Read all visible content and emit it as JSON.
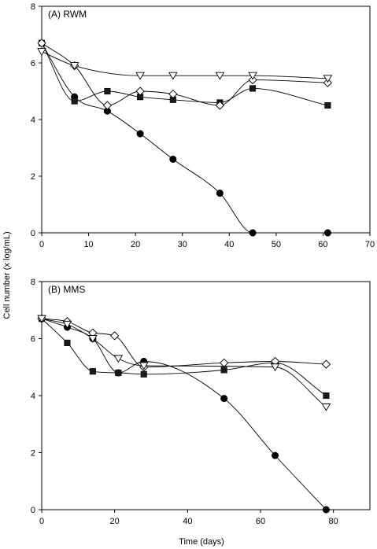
{
  "figure": {
    "ylabel": "Cell number (x log/mL)",
    "xlabel": "Time (days)"
  },
  "chart_data": [
    {
      "type": "line",
      "title": "(A) RWM",
      "xlim": [
        0,
        70
      ],
      "ylim": [
        0,
        8
      ],
      "xticks": [
        0,
        10,
        20,
        30,
        40,
        50,
        60,
        70
      ],
      "yticks": [
        0,
        2,
        4,
        6,
        8
      ],
      "grid": false,
      "series": [
        {
          "marker": "filled-circle",
          "x": [
            0,
            7,
            14,
            21,
            28,
            38,
            45,
            61
          ],
          "y": [
            6.7,
            4.8,
            4.3,
            3.5,
            2.6,
            1.4,
            0.0,
            0.0
          ]
        },
        {
          "marker": "filled-square",
          "x": [
            0,
            7,
            14,
            21,
            28,
            38,
            45,
            61
          ],
          "y": [
            6.7,
            4.65,
            5.0,
            4.8,
            4.7,
            4.6,
            5.1,
            4.5
          ]
        },
        {
          "marker": "open-diamond",
          "x": [
            0,
            7,
            14,
            21,
            28,
            38,
            45,
            61
          ],
          "y": [
            6.7,
            5.9,
            4.5,
            5.0,
            4.9,
            4.5,
            5.4,
            5.3
          ]
        },
        {
          "marker": "open-triangle-down",
          "x": [
            0,
            7,
            21,
            28,
            38,
            45,
            61
          ],
          "y": [
            6.4,
            5.9,
            5.55,
            5.55,
            5.55,
            5.55,
            5.45
          ]
        }
      ]
    },
    {
      "type": "line",
      "title": "(B) MMS",
      "xlim": [
        0,
        90
      ],
      "ylim": [
        0,
        8
      ],
      "xticks": [
        0,
        20,
        40,
        60,
        80
      ],
      "yticks": [
        0,
        2,
        4,
        6,
        8
      ],
      "grid": false,
      "series": [
        {
          "marker": "filled-circle",
          "x": [
            0,
            7,
            14,
            21,
            28,
            50,
            64,
            78
          ],
          "y": [
            6.7,
            6.4,
            6.0,
            4.8,
            5.2,
            3.9,
            1.9,
            0.0
          ]
        },
        {
          "marker": "filled-square",
          "x": [
            0,
            7,
            14,
            21,
            28,
            50,
            64,
            78
          ],
          "y": [
            6.7,
            5.85,
            4.85,
            4.8,
            4.75,
            4.9,
            5.15,
            4.0
          ]
        },
        {
          "marker": "open-diamond",
          "x": [
            0,
            7,
            14,
            20,
            28,
            50,
            64,
            78
          ],
          "y": [
            6.7,
            6.6,
            6.2,
            6.1,
            5.0,
            5.15,
            5.2,
            5.1
          ]
        },
        {
          "marker": "open-triangle-down",
          "x": [
            0,
            7,
            14,
            21,
            28,
            64,
            78
          ],
          "y": [
            6.7,
            6.5,
            6.0,
            5.3,
            5.05,
            5.0,
            3.6
          ]
        }
      ]
    }
  ]
}
